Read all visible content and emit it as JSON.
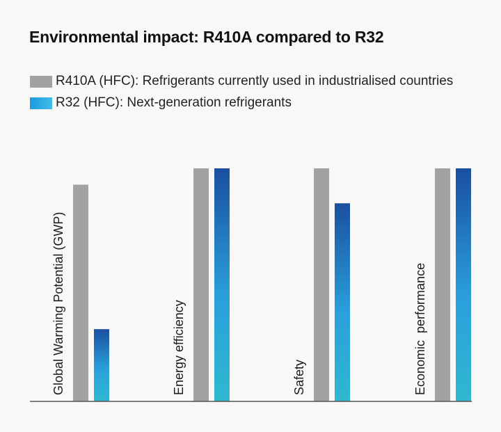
{
  "title": "Environmental impact: R410A compared to R32",
  "legend": [
    {
      "label": "R410A (HFC): Refrigerants currently used in industrialised countries",
      "color": "#a2a2a2"
    },
    {
      "label": "R32 (HFC): Next-generation refrigerants",
      "color": "#1d9ae0"
    }
  ],
  "chart_data": {
    "type": "bar",
    "title": "Environmental impact: R410A compared to R32",
    "categories": [
      "Global Warming Potential (GWP)",
      "Energy efficiency",
      "Safety",
      "Economic  performance"
    ],
    "series": [
      {
        "name": "R410A (HFC): Refrigerants currently used in industrialised countries",
        "color": "#a2a2a2",
        "values": [
          0.93,
          1.0,
          1.0,
          1.0
        ]
      },
      {
        "name": "R32 (HFC): Next-generation refrigerants",
        "color_top": "#1a4fa0",
        "color_bottom": "#2fb8cf",
        "values": [
          0.31,
          1.0,
          0.85,
          1.0
        ]
      }
    ],
    "ylim": [
      0,
      1
    ],
    "xlabel": "",
    "ylabel": "",
    "grid": false,
    "legend_position": "top-left",
    "axis_ticks": false
  }
}
